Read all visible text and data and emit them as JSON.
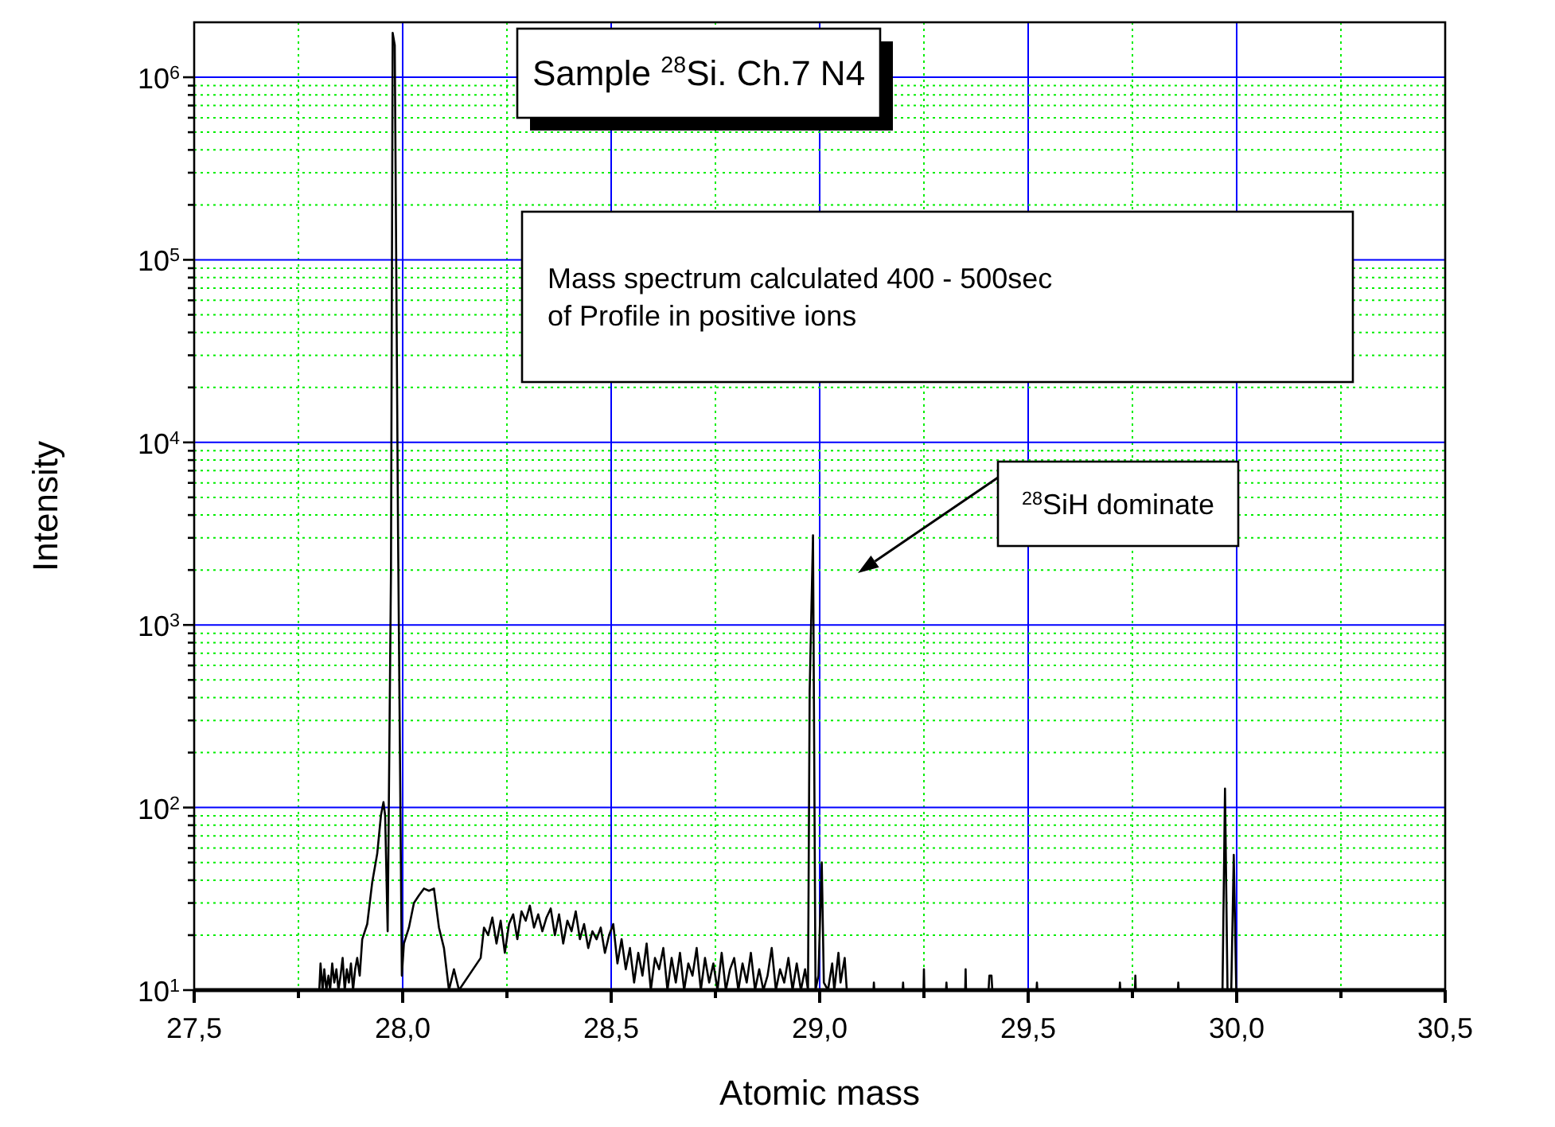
{
  "chart_data": {
    "type": "line",
    "xlabel": "Atomic mass",
    "ylabel": "Intensity",
    "annotations": [
      "Sample $^{28}$Si. Ch.7 N4",
      "Mass spectrum calculated 400 - 500sec\nof Profile in positive ions",
      "$^{28}$SiH dominate"
    ],
    "log": true,
    "grid": true,
    "marker": "none",
    "line_style": "solid",
    "xlim": [
      27.5,
      30.5
    ],
    "xticks": [
      {
        "value": 27.5,
        "label": "27,5"
      },
      {
        "value": 27.75,
        "label": null
      },
      {
        "value": 28.0,
        "label": "28,0"
      },
      {
        "value": 28.25,
        "label": null
      },
      {
        "value": 28.5,
        "label": "28,5"
      },
      {
        "value": 28.75,
        "label": null
      },
      {
        "value": 29.0,
        "label": "29,0"
      },
      {
        "value": 29.25,
        "label": null
      },
      {
        "value": 29.5,
        "label": "29,5"
      },
      {
        "value": 29.75,
        "label": null
      },
      {
        "value": 30.0,
        "label": "30,0"
      },
      {
        "value": 30.25,
        "label": null
      },
      {
        "value": 30.5,
        "label": "30,5"
      }
    ],
    "ylim": [
      10,
      2000000
    ],
    "yticks": [
      {
        "value": 10,
        "label": "10$^{1}$"
      },
      {
        "value": 20,
        "label": null
      },
      {
        "value": 30,
        "label": null
      },
      {
        "value": 40,
        "label": null
      },
      {
        "value": 50,
        "label": null
      },
      {
        "value": 60,
        "label": null
      },
      {
        "value": 70,
        "label": null
      },
      {
        "value": 80,
        "label": null
      },
      {
        "value": 90,
        "label": null
      },
      {
        "value": 100,
        "label": "10$^{2}$"
      },
      {
        "value": 200,
        "label": null
      },
      {
        "value": 300,
        "label": null
      },
      {
        "value": 400,
        "label": null
      },
      {
        "value": 500,
        "label": null
      },
      {
        "value": 600,
        "label": null
      },
      {
        "value": 700,
        "label": null
      },
      {
        "value": 800,
        "label": null
      },
      {
        "value": 900,
        "label": null
      },
      {
        "value": 1000,
        "label": "10$^{3}$"
      },
      {
        "value": 2000,
        "label": null
      },
      {
        "value": 3000,
        "label": null
      },
      {
        "value": 4000,
        "label": null
      },
      {
        "value": 5000,
        "label": null
      },
      {
        "value": 6000,
        "label": null
      },
      {
        "value": 7000,
        "label": null
      },
      {
        "value": 8000,
        "label": null
      },
      {
        "value": 9000,
        "label": null
      },
      {
        "value": 10000,
        "label": "10$^{4}$"
      },
      {
        "value": 20000,
        "label": null
      },
      {
        "value": 30000,
        "label": null
      },
      {
        "value": 40000,
        "label": null
      },
      {
        "value": 50000,
        "label": null
      },
      {
        "value": 60000,
        "label": null
      },
      {
        "value": 70000,
        "label": null
      },
      {
        "value": 80000,
        "label": null
      },
      {
        "value": 90000,
        "label": null
      },
      {
        "value": 100000,
        "label": "10$^{5}$"
      },
      {
        "value": 200000,
        "label": null
      },
      {
        "value": 300000,
        "label": null
      },
      {
        "value": 400000,
        "label": null
      },
      {
        "value": 500000,
        "label": null
      },
      {
        "value": 600000,
        "label": null
      },
      {
        "value": 700000,
        "label": null
      },
      {
        "value": 800000,
        "label": null
      },
      {
        "value": 900000,
        "label": null
      },
      {
        "value": 1000000,
        "label": "10$^{6}$"
      }
    ],
    "series": [
      {
        "color": "#000000",
        "x": [
          27.8,
          27.803,
          27.808,
          27.812,
          27.817,
          27.822,
          27.826,
          27.831,
          27.836,
          27.841,
          27.846,
          27.851,
          27.856,
          27.861,
          27.866,
          27.871,
          27.876,
          27.881,
          27.886,
          27.891,
          27.897,
          27.903,
          27.915,
          27.927,
          27.939,
          27.948,
          27.954,
          27.958,
          27.964,
          27.972,
          27.976,
          27.981,
          27.989,
          27.998,
          28.003,
          28.015,
          28.027,
          28.039,
          28.051,
          28.063,
          28.075,
          28.087,
          28.099,
          28.111,
          28.123,
          28.135,
          28.187,
          28.195,
          28.205,
          28.215,
          28.225,
          28.235,
          28.245,
          28.255,
          28.265,
          28.275,
          28.285,
          28.295,
          28.305,
          28.315,
          28.325,
          28.335,
          28.345,
          28.355,
          28.365,
          28.375,
          28.385,
          28.395,
          28.405,
          28.415,
          28.425,
          28.435,
          28.445,
          28.455,
          28.465,
          28.475,
          28.485,
          28.495,
          28.505,
          28.515,
          28.525,
          28.535,
          28.545,
          28.555,
          28.565,
          28.575,
          28.585,
          28.595,
          28.605,
          28.615,
          28.625,
          28.635,
          28.645,
          28.655,
          28.665,
          28.675,
          28.685,
          28.695,
          28.705,
          28.715,
          28.725,
          28.735,
          28.745,
          28.755,
          28.765,
          28.775,
          28.785,
          28.795,
          28.805,
          28.815,
          28.825,
          28.835,
          28.845,
          28.855,
          28.865,
          28.875,
          28.885,
          28.895,
          28.905,
          28.915,
          28.925,
          28.935,
          28.945,
          28.955,
          28.965,
          28.972,
          28.976,
          28.984,
          28.99,
          28.997,
          29.005,
          29.01,
          29.02,
          29.03,
          29.035,
          29.045,
          29.05,
          29.06,
          29.065,
          29.129,
          29.13,
          29.131,
          29.199,
          29.2,
          29.201,
          29.249,
          29.25,
          29.251,
          29.303,
          29.304,
          29.305,
          29.349,
          29.35,
          29.351,
          29.405,
          29.407,
          29.412,
          29.414,
          29.52,
          29.521,
          29.522,
          29.719,
          29.72,
          29.721,
          29.756,
          29.757,
          29.758,
          29.859,
          29.86,
          29.861,
          29.966,
          29.972,
          29.978,
          29.987,
          29.993,
          29.999
        ],
        "values": [
          10,
          14,
          10,
          13,
          10,
          12,
          10,
          14,
          11,
          13,
          10,
          12,
          15,
          10,
          13,
          11,
          14,
          10,
          13,
          15,
          12,
          19,
          23,
          39,
          56,
          91,
          107,
          90,
          21,
          2000,
          1750000,
          1500000,
          3000,
          12,
          18,
          22,
          30,
          33,
          36,
          35,
          36,
          22,
          17,
          10,
          13,
          10,
          15,
          22,
          20,
          25,
          18,
          24,
          16,
          23,
          26,
          19,
          27,
          24,
          29,
          22,
          26,
          21,
          25,
          28,
          20,
          26,
          18,
          24,
          21,
          27,
          19,
          23,
          17,
          21,
          19,
          22,
          16,
          20,
          23,
          14,
          19,
          13,
          17,
          11,
          16,
          12,
          18,
          10,
          15,
          13,
          17,
          10,
          15,
          11,
          16,
          10,
          14,
          12,
          17,
          10,
          15,
          11,
          14,
          10,
          16,
          10,
          13,
          15,
          10,
          14,
          11,
          16,
          10,
          13,
          10,
          12,
          17,
          10,
          13,
          11,
          15,
          10,
          14,
          10,
          13,
          10,
          434,
          3100,
          10,
          12,
          50,
          11,
          10,
          14,
          10,
          16,
          11,
          15,
          10,
          10,
          11,
          10,
          10,
          11,
          10,
          10,
          13,
          10,
          10,
          11,
          10,
          10,
          13,
          10,
          10,
          12,
          12,
          10,
          10,
          11,
          10,
          10,
          11,
          10,
          10,
          12,
          10,
          10,
          11,
          10,
          10,
          127,
          10,
          10,
          55,
          10
        ]
      }
    ]
  }
}
